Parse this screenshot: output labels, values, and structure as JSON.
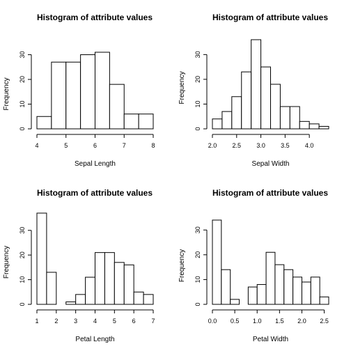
{
  "chart_data": [
    {
      "type": "bar",
      "title": "Histogram of attribute values",
      "xlabel": "Sepal Length",
      "ylabel": "Frequency",
      "bin_edges": [
        4.0,
        4.5,
        5.0,
        5.5,
        6.0,
        6.5,
        7.0,
        7.5,
        8.0
      ],
      "values": [
        5,
        27,
        27,
        30,
        31,
        18,
        6,
        6
      ],
      "xticks": [
        4,
        5,
        6,
        7,
        8
      ],
      "xtick_labels": [
        "4",
        "5",
        "6",
        "7",
        "8"
      ],
      "xlim": [
        4,
        8
      ],
      "yticks": [
        0,
        10,
        20,
        30
      ],
      "ylim": [
        0,
        31
      ]
    },
    {
      "type": "bar",
      "title": "Histogram of attribute values",
      "xlabel": "Sepal Width",
      "ylabel": "Frequency",
      "bin_edges": [
        2.0,
        2.2,
        2.4,
        2.6,
        2.8,
        3.0,
        3.2,
        3.4,
        3.6,
        3.8,
        4.0,
        4.2,
        4.4
      ],
      "values": [
        4,
        7,
        13,
        23,
        36,
        25,
        18,
        9,
        9,
        3,
        2,
        1
      ],
      "xticks": [
        2.0,
        2.5,
        3.0,
        3.5,
        4.0
      ],
      "xtick_labels": [
        "2.0",
        "2.5",
        "3.0",
        "3.5",
        "4.0"
      ],
      "xlim": [
        2.0,
        4.4
      ],
      "yticks": [
        0,
        10,
        20,
        30
      ],
      "ylim": [
        0,
        36
      ]
    },
    {
      "type": "bar",
      "title": "Histogram of attribute values",
      "xlabel": "Petal Length",
      "ylabel": "Frequency",
      "bin_edges": [
        1.0,
        1.5,
        2.0,
        2.5,
        3.0,
        3.5,
        4.0,
        4.5,
        5.0,
        5.5,
        6.0,
        6.5,
        7.0
      ],
      "values": [
        37,
        13,
        0,
        1,
        4,
        11,
        21,
        21,
        17,
        16,
        5,
        4
      ],
      "xticks": [
        1,
        2,
        3,
        4,
        5,
        6,
        7
      ],
      "xtick_labels": [
        "1",
        "2",
        "3",
        "4",
        "5",
        "6",
        "7"
      ],
      "xlim": [
        1,
        7
      ],
      "yticks": [
        0,
        10,
        20,
        30
      ],
      "ylim": [
        0,
        37
      ]
    },
    {
      "type": "bar",
      "title": "Histogram of attribute values",
      "xlabel": "Petal Width",
      "ylabel": "Frequency",
      "bin_edges": [
        0.0,
        0.2,
        0.4,
        0.6,
        0.8,
        1.0,
        1.2,
        1.4,
        1.6,
        1.8,
        2.0,
        2.2,
        2.4,
        2.6
      ],
      "values": [
        34,
        14,
        2,
        0,
        7,
        8,
        21,
        16,
        14,
        11,
        9,
        11,
        3
      ],
      "xticks": [
        0.0,
        0.5,
        1.0,
        1.5,
        2.0,
        2.5
      ],
      "xtick_labels": [
        "0.0",
        "0.5",
        "1.0",
        "1.5",
        "2.0",
        "2.5"
      ],
      "xlim": [
        0,
        2.6
      ],
      "yticks": [
        0,
        10,
        20,
        30
      ],
      "ylim": [
        0,
        34
      ]
    }
  ]
}
